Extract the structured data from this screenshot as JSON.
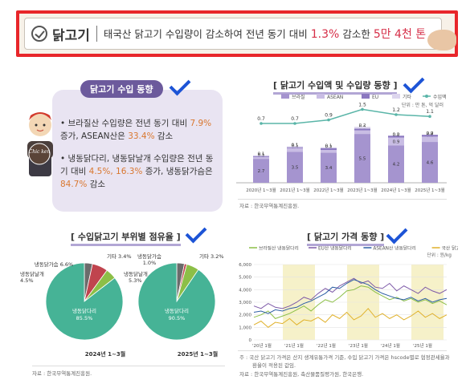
{
  "header": {
    "category": "닭고기",
    "headline_prefix": "태국산 닭고기 수입량이 감소하여 전년 동기 대비",
    "headline_pct": "1.3%",
    "headline_mid": "감소한",
    "headline_amount": "5만 4천 톤"
  },
  "section_import": {
    "title": "닭고기 수입 동향",
    "mascot_text": "Chic ken",
    "bullets": [
      {
        "a": "• 브라질산 수입량은 전년 동기 대비 ",
        "b": "7.9%",
        "c": " 증가, ASEAN산은 ",
        "d": "33.4%",
        "e": " 감소"
      },
      {
        "a": "• 냉동닭다리, 냉동닭날개 수입량은 전년 동기 대비 ",
        "b": "4.5%, 16.3%",
        "c": " 증가, 냉동닭가슴은 ",
        "d": "84.7%",
        "e": " 감소"
      }
    ]
  },
  "import_chart_title": "[ 닭고기 수입액 및 수입량 동향 ]",
  "import_chart_unit": "단위 : 만 톤, 억 달러",
  "import_chart_source": "자료 : 한국무역통계진흥원.",
  "share_title": "[ 수입닭고기 부위별 점유율 ]",
  "share_source": "자료 : 한국무역통계진흥원.",
  "price_title": "[ 닭고기 가격 동향 ]",
  "price_unit": "단위 : 원/kg",
  "price_note1": "주 : 국산 닭고기 가격은 산지 생계유통가격 기준, 수입 닭고기 가격은 hscode별로 협정관세율과",
  "price_note2": "환율이 적용된 값임.",
  "price_source": "자료 : 한국무역통계진흥원, 축산물품질평가원, 한국은행.",
  "colors": {
    "purple": "#8e7bc0",
    "purple_dark": "#6c5a9c",
    "teal": "#46b396",
    "red": "#c0444e",
    "green": "#8cbf47",
    "orange": "#d9772f",
    "accent": "#d62f48"
  },
  "chart_data": [
    {
      "type": "bar",
      "categories": [
        "2020년 1~3월",
        "2021년 1~3월",
        "2022년 1~3월",
        "2023년 1~3월",
        "2024년 1~3월",
        "2025년 1~3월"
      ],
      "series": [
        {
          "name": "브라질",
          "values": [
            2.7,
            3.5,
            3.4,
            5.5,
            4.2,
            4.6
          ],
          "color": "#a594cf"
        },
        {
          "name": "ASEAN",
          "values": [
            0.2,
            0.4,
            0.3,
            0.4,
            0.9,
            0.6
          ],
          "color": "#c9bde4"
        },
        {
          "name": "EU",
          "values": [
            0.1,
            0.1,
            0.2,
            0.2,
            0.2,
            0.2
          ],
          "color": "#8b78c0"
        },
        {
          "name": "기타",
          "values": [
            0.1,
            0.1,
            0.1,
            0.2,
            0.0,
            0.0
          ],
          "color": "#ddd6ee"
        },
        {
          "name": "수입액",
          "type": "line",
          "values": [
            0.7,
            0.7,
            0.9,
            1.5,
            1.2,
            1.1
          ],
          "color": "#5ab5a8"
        }
      ],
      "legend": "top-right"
    },
    {
      "type": "pie",
      "caption": "2024년 1~3월",
      "slices": [
        {
          "label": "냉동닭다리",
          "value": 85.5,
          "color": "#46b396"
        },
        {
          "label": "냉동닭날개",
          "value": 4.5,
          "color": "#8cbf47"
        },
        {
          "label": "냉동닭가슴",
          "value": 6.6,
          "color": "#c0444e"
        },
        {
          "label": "기타",
          "value": 3.4,
          "color": "#6b6b6b"
        }
      ]
    },
    {
      "type": "pie",
      "caption": "2025년 1~3월",
      "slices": [
        {
          "label": "냉동닭다리",
          "value": 90.5,
          "color": "#46b396"
        },
        {
          "label": "냉동닭날개",
          "value": 5.3,
          "color": "#8cbf47"
        },
        {
          "label": "냉동닭가슴",
          "value": 1.0,
          "color": "#c0444e"
        },
        {
          "label": "기타",
          "value": 3.2,
          "color": "#6b6b6b"
        }
      ]
    },
    {
      "type": "line",
      "ylim": [
        0,
        6000
      ],
      "yticks": [
        "0",
        "1,000",
        "2,000",
        "3,000",
        "4,000",
        "5,000",
        "6,000"
      ],
      "xticks": [
        "'20년 1월",
        "'21년 1월",
        "'22년 1월",
        "'23년 1월",
        "'24년 1월",
        "'25년 1월"
      ],
      "series": [
        {
          "name": "브라질산 냉동닭다리",
          "color": "#8cbf47",
          "values": [
            1800,
            2000,
            2300,
            1700,
            1900,
            2100,
            2400,
            2700,
            2300,
            2800,
            3200,
            3000,
            3400,
            3900,
            4000,
            4300,
            4200,
            3800,
            3500,
            3200,
            3400,
            3100,
            3300,
            3000,
            3200,
            2900,
            3100,
            2800
          ]
        },
        {
          "name": "EU산 냉동닭다리",
          "color": "#7e5aa8",
          "values": [
            2700,
            2500,
            2900,
            2600,
            2500,
            2700,
            3000,
            3400,
            3200,
            3700,
            4100,
            3800,
            4300,
            4600,
            4900,
            4500,
            4700,
            4200,
            4100,
            4500,
            3900,
            4300,
            4000,
            3700,
            4200,
            3900,
            3700,
            4000
          ]
        },
        {
          "name": "ASEAN산 냉동닭다리",
          "color": "#2d5fa4",
          "values": [
            2200,
            2300,
            2100,
            2400,
            2300,
            2500,
            2600,
            2900,
            3100,
            3400,
            3700,
            4200,
            4100,
            4500,
            4800,
            4600,
            4400,
            4000,
            3700,
            3500,
            3300,
            3200,
            3400,
            3100,
            3300,
            3000,
            3200,
            3300
          ]
        },
        {
          "name": "국산 닭고기",
          "color": "#e0b12b",
          "values": [
            1200,
            1500,
            1000,
            1400,
            1300,
            1700,
            1200,
            1600,
            1500,
            1800,
            1400,
            2000,
            1700,
            2200,
            1600,
            1900,
            2500,
            1800,
            2100,
            1700,
            2000,
            1600,
            1900,
            2300,
            1800,
            2100,
            1700,
            2000
          ]
        }
      ],
      "shaded_years": [
        "'21년",
        "'23년",
        "'25년"
      ],
      "legend": "top"
    }
  ]
}
